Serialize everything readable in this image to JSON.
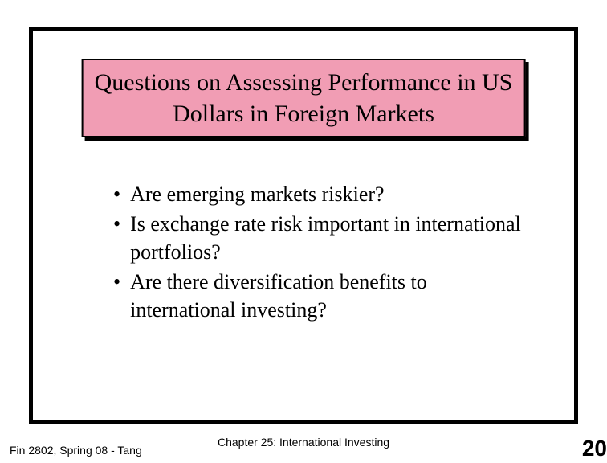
{
  "title": {
    "line1": "Questions on Assessing Performance in US",
    "line2": "Dollars in Foreign Markets",
    "bg_color": "#f19db4",
    "border_color": "#000000",
    "shadow_color": "#000000",
    "font_size": 30
  },
  "bullets": [
    {
      "text": "Are emerging markets riskier?"
    },
    {
      "text": "Is exchange rate risk important in international portfolios?"
    },
    {
      "text": "Are there diversification benefits to international investing?"
    }
  ],
  "footer": {
    "left": "Fin 2802, Spring 08 - Tang",
    "center": "Chapter 25: International Investing",
    "page": "20"
  },
  "frame": {
    "border_color": "#000000",
    "border_width": 5,
    "background": "#ffffff"
  }
}
